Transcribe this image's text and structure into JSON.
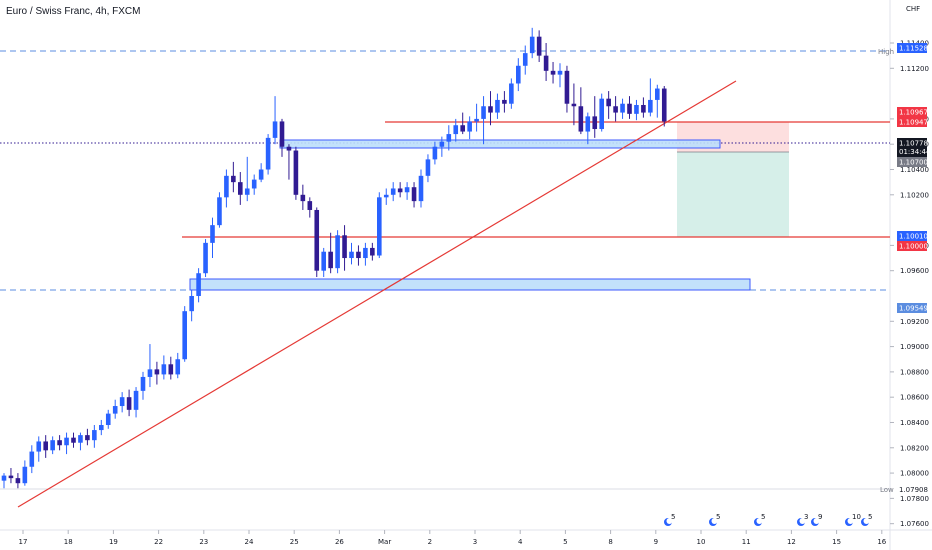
{
  "title": "Euro / Swiss Franc, 4h, FXCM",
  "currency": "CHF",
  "chart_data": {
    "type": "candlestick",
    "title": "Euro / Swiss Franc, 4h, FXCM",
    "ylim": [
      1.0755,
      1.1174
    ],
    "y_ticks": [
      "1.11400",
      "1.11200",
      "1.10800",
      "1.10600",
      "1.10400",
      "1.10200",
      "1.09800",
      "1.09600",
      "1.09200",
      "1.09000",
      "1.08800",
      "1.08600",
      "1.08400",
      "1.08200",
      "1.08000",
      "1.07800",
      "1.07600"
    ],
    "x_ticks": [
      "17",
      "18",
      "19",
      "22",
      "23",
      "24",
      "25",
      "26",
      "Mar",
      "2",
      "3",
      "4",
      "5",
      "8",
      "9",
      "10",
      "11",
      "12",
      "15",
      "16"
    ],
    "candles": [
      [
        1.0794,
        1.08,
        1.0788,
        1.0798
      ],
      [
        1.0798,
        1.0804,
        1.0792,
        1.0796
      ],
      [
        1.0796,
        1.08,
        1.0788,
        1.0792
      ],
      [
        1.0792,
        1.081,
        1.079,
        1.0805
      ],
      [
        1.0805,
        1.0822,
        1.08,
        1.0817
      ],
      [
        1.0817,
        1.0829,
        1.0809,
        1.0825
      ],
      [
        1.0825,
        1.083,
        1.0812,
        1.0818
      ],
      [
        1.0818,
        1.0829,
        1.0815,
        1.0826
      ],
      [
        1.0826,
        1.083,
        1.0818,
        1.0822
      ],
      [
        1.0822,
        1.0832,
        1.0815,
        1.0828
      ],
      [
        1.0828,
        1.0832,
        1.082,
        1.0824
      ],
      [
        1.0824,
        1.0832,
        1.0818,
        1.083
      ],
      [
        1.083,
        1.0835,
        1.0822,
        1.0826
      ],
      [
        1.0826,
        1.0838,
        1.082,
        1.0834
      ],
      [
        1.0834,
        1.0842,
        1.083,
        1.0838
      ],
      [
        1.0838,
        1.085,
        1.0835,
        1.0847
      ],
      [
        1.0847,
        1.0858,
        1.0843,
        1.0853
      ],
      [
        1.0853,
        1.0864,
        1.0848,
        1.086
      ],
      [
        1.086,
        1.0866,
        1.0845,
        1.085
      ],
      [
        1.085,
        1.0868,
        1.0844,
        1.0865
      ],
      [
        1.0865,
        1.088,
        1.0858,
        1.0876
      ],
      [
        1.0876,
        1.0902,
        1.0868,
        1.0882
      ],
      [
        1.0882,
        1.0888,
        1.087,
        1.0878
      ],
      [
        1.0878,
        1.0893,
        1.0874,
        1.0886
      ],
      [
        1.0886,
        1.0892,
        1.0874,
        1.0878
      ],
      [
        1.0878,
        1.0895,
        1.0875,
        1.089
      ],
      [
        1.089,
        1.0932,
        1.0888,
        1.0928
      ],
      [
        1.0928,
        1.0945,
        1.092,
        1.094
      ],
      [
        1.094,
        1.0962,
        1.0935,
        1.0958
      ],
      [
        1.0958,
        1.0985,
        1.0955,
        1.0982
      ],
      [
        1.0982,
        1.1002,
        1.097,
        1.0996
      ],
      [
        1.0996,
        1.1022,
        1.0994,
        1.1018
      ],
      [
        1.1018,
        1.104,
        1.101,
        1.1035
      ],
      [
        1.1035,
        1.1046,
        1.1022,
        1.103
      ],
      [
        1.103,
        1.1038,
        1.1012,
        1.102
      ],
      [
        1.102,
        1.105,
        1.1015,
        1.1025
      ],
      [
        1.1025,
        1.1036,
        1.102,
        1.1032
      ],
      [
        1.1032,
        1.1045,
        1.103,
        1.104
      ],
      [
        1.104,
        1.1068,
        1.1036,
        1.1065
      ],
      [
        1.1065,
        1.1098,
        1.106,
        1.1078
      ],
      [
        1.1078,
        1.108,
        1.105,
        1.1058
      ],
      [
        1.1058,
        1.106,
        1.1032,
        1.1055
      ],
      [
        1.1055,
        1.1058,
        1.1016,
        1.102
      ],
      [
        1.102,
        1.1028,
        1.1008,
        1.1015
      ],
      [
        1.1015,
        1.1018,
        1.1002,
        1.1008
      ],
      [
        1.1008,
        1.101,
        1.0955,
        1.096
      ],
      [
        1.096,
        1.0978,
        1.0955,
        1.0975
      ],
      [
        1.0975,
        1.099,
        1.0958,
        1.0962
      ],
      [
        1.0962,
        1.0992,
        1.0958,
        1.0988
      ],
      [
        1.0988,
        1.0996,
        1.096,
        1.097
      ],
      [
        1.097,
        1.0982,
        1.0965,
        1.0975
      ],
      [
        1.0975,
        1.098,
        1.0964,
        1.097
      ],
      [
        1.097,
        1.0982,
        1.0964,
        1.0978
      ],
      [
        1.0978,
        1.0982,
        1.0968,
        1.0972
      ],
      [
        1.0972,
        1.1022,
        1.097,
        1.1018
      ],
      [
        1.1018,
        1.1025,
        1.1012,
        1.102
      ],
      [
        1.102,
        1.103,
        1.1015,
        1.1025
      ],
      [
        1.1025,
        1.103,
        1.1018,
        1.1022
      ],
      [
        1.1022,
        1.103,
        1.1016,
        1.1026
      ],
      [
        1.1026,
        1.103,
        1.101,
        1.1015
      ],
      [
        1.1015,
        1.104,
        1.101,
        1.1035
      ],
      [
        1.1035,
        1.1052,
        1.103,
        1.1048
      ],
      [
        1.1048,
        1.1062,
        1.1044,
        1.1058
      ],
      [
        1.1058,
        1.1066,
        1.105,
        1.1062
      ],
      [
        1.1062,
        1.1075,
        1.1055,
        1.1068
      ],
      [
        1.1068,
        1.108,
        1.1062,
        1.1075
      ],
      [
        1.1075,
        1.1085,
        1.1068,
        1.107
      ],
      [
        1.107,
        1.1082,
        1.1064,
        1.1078
      ],
      [
        1.1078,
        1.1092,
        1.107,
        1.108
      ],
      [
        1.108,
        1.1098,
        1.106,
        1.109
      ],
      [
        1.109,
        1.1102,
        1.1075,
        1.1085
      ],
      [
        1.1085,
        1.11,
        1.108,
        1.1095
      ],
      [
        1.1095,
        1.1102,
        1.1085,
        1.1092
      ],
      [
        1.1092,
        1.1112,
        1.1088,
        1.1108
      ],
      [
        1.1108,
        1.1128,
        1.1102,
        1.1122
      ],
      [
        1.1122,
        1.1138,
        1.1115,
        1.1132
      ],
      [
        1.1132,
        1.1152,
        1.1128,
        1.1145
      ],
      [
        1.1145,
        1.115,
        1.1125,
        1.113
      ],
      [
        1.113,
        1.114,
        1.111,
        1.1118
      ],
      [
        1.1118,
        1.1125,
        1.1108,
        1.1115
      ],
      [
        1.1115,
        1.1124,
        1.1105,
        1.1118
      ],
      [
        1.1118,
        1.1122,
        1.1085,
        1.1092
      ],
      [
        1.1092,
        1.1108,
        1.1075,
        1.109
      ],
      [
        1.109,
        1.1105,
        1.1068,
        1.107
      ],
      [
        1.107,
        1.1085,
        1.106,
        1.1082
      ],
      [
        1.1082,
        1.1098,
        1.1065,
        1.1072
      ],
      [
        1.1072,
        1.11,
        1.107,
        1.1096
      ],
      [
        1.1096,
        1.1102,
        1.108,
        1.109
      ],
      [
        1.109,
        1.1098,
        1.1078,
        1.1085
      ],
      [
        1.1085,
        1.1096,
        1.108,
        1.1092
      ],
      [
        1.1092,
        1.1098,
        1.108,
        1.1084
      ],
      [
        1.1084,
        1.1095,
        1.1079,
        1.1091
      ],
      [
        1.1091,
        1.1097,
        1.1081,
        1.1085
      ],
      [
        1.1085,
        1.1112,
        1.1082,
        1.1095
      ],
      [
        1.1095,
        1.1107,
        1.1081,
        1.1104
      ],
      [
        1.1104,
        1.1106,
        1.1074,
        1.1078
      ]
    ],
    "levels": {
      "high": "1.11528",
      "bid": "1.10778",
      "countdown": "01:34:44",
      "entry": "1.10947",
      "stop": "1.10967",
      "ask": "1.10700",
      "target": "1.10010",
      "tp_level": "1.10000",
      "support": "1.09549",
      "low": "1.07908"
    },
    "side_labels": {
      "high": "High",
      "low": "Low"
    },
    "events": [
      "5",
      "5",
      "5",
      "3",
      "9",
      "10",
      "5"
    ]
  },
  "colors": {
    "up": "#2962ff",
    "down": "#311b92",
    "trend": "#e53935",
    "zone": "#bbdefb",
    "zone_border": "#3d5afe",
    "stop_fill": "#fdd9d9",
    "target_fill": "#d2ede7",
    "dashed": "#5b8de0",
    "tag_blue": "#2962ff",
    "tag_red": "#f23645",
    "tag_gray": "#787b86",
    "tag_dark": "#131722"
  }
}
